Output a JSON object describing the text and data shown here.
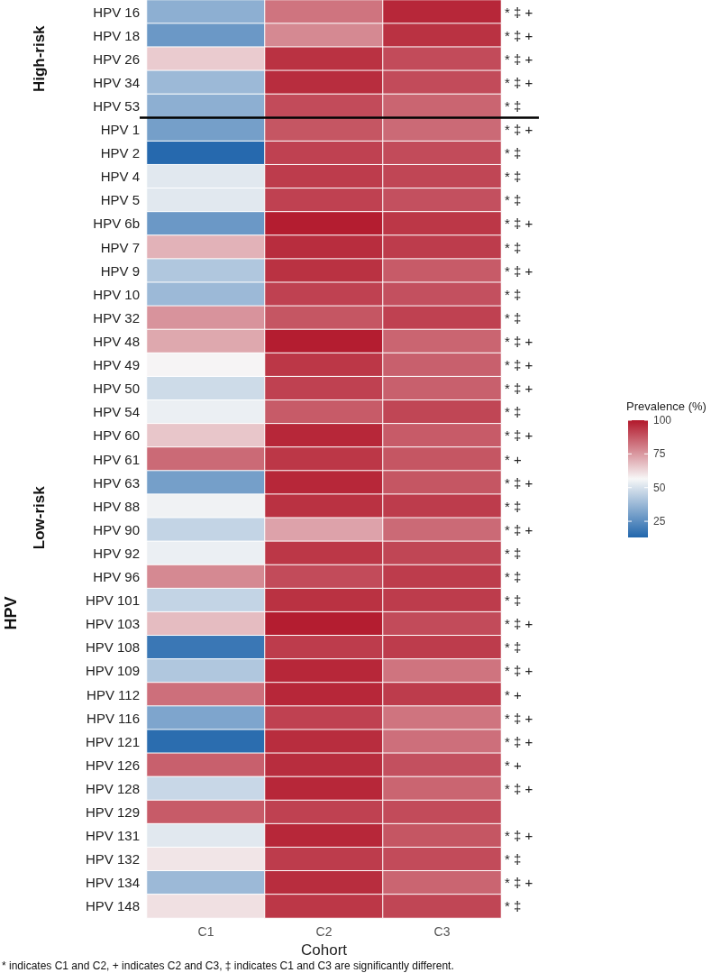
{
  "chart_data": {
    "type": "heatmap",
    "xlabel": "Cohort",
    "ylabel": "HPV",
    "clabel": "Prevalence (%)",
    "categories": [
      "C1",
      "C2",
      "C3"
    ],
    "y_categories": [
      "HPV 16",
      "HPV 18",
      "HPV 26",
      "HPV 34",
      "HPV 53",
      "HPV 1",
      "HPV 2",
      "HPV 4",
      "HPV 5",
      "HPV 6b",
      "HPV 7",
      "HPV 9",
      "HPV 10",
      "HPV 32",
      "HPV 48",
      "HPV 49",
      "HPV 50",
      "HPV 54",
      "HPV 60",
      "HPV 61",
      "HPV 63",
      "HPV 88",
      "HPV 90",
      "HPV 92",
      "HPV 96",
      "HPV 101",
      "HPV 103",
      "HPV 108",
      "HPV 109",
      "HPV 112",
      "HPV 116",
      "HPV 121",
      "HPV 126",
      "HPV 128",
      "HPV 129",
      "HPV 131",
      "HPV 132",
      "HPV 134",
      "HPV 148"
    ],
    "y2_categories": [
      "* ‡ +",
      "* ‡ +",
      "* ‡ +",
      "* ‡ +",
      "* ‡",
      "* ‡ +",
      "* ‡",
      "* ‡",
      "* ‡",
      "* ‡ +",
      "* ‡",
      "* ‡ +",
      "* ‡",
      "* ‡",
      "* ‡ +",
      "* ‡ +",
      "* ‡ +",
      "* ‡",
      "* ‡ +",
      "* +",
      "* ‡ +",
      "* ‡",
      "* ‡ +",
      "* ‡",
      "* ‡",
      "* ‡",
      "* ‡ +",
      "* ‡",
      "* ‡ +",
      "* +",
      "* ‡ +",
      "* ‡ +",
      "* +",
      "* ‡ +",
      null,
      "* ‡ +",
      "* ‡",
      "* ‡ +",
      "* ‡"
    ],
    "cells": [
      [
        35,
        82,
        97
      ],
      [
        28,
        78,
        95
      ],
      [
        65,
        95,
        90
      ],
      [
        38,
        96,
        90
      ],
      [
        35,
        90,
        85
      ],
      [
        30,
        88,
        84
      ],
      [
        14,
        92,
        90
      ],
      [
        52,
        93,
        91
      ],
      [
        52,
        92,
        89
      ],
      [
        28,
        99,
        94
      ],
      [
        70,
        96,
        93
      ],
      [
        42,
        95,
        87
      ],
      [
        38,
        92,
        89
      ],
      [
        76,
        88,
        92
      ],
      [
        72,
        99,
        85
      ],
      [
        57,
        94,
        86
      ],
      [
        48,
        92,
        86
      ],
      [
        54,
        87,
        91
      ],
      [
        66,
        97,
        87
      ],
      [
        84,
        94,
        88
      ],
      [
        30,
        97,
        88
      ],
      [
        55,
        95,
        93
      ],
      [
        46,
        73,
        84
      ],
      [
        54,
        94,
        91
      ],
      [
        78,
        90,
        93
      ],
      [
        46,
        95,
        93
      ],
      [
        68,
        99,
        90
      ],
      [
        18,
        93,
        93
      ],
      [
        42,
        97,
        82
      ],
      [
        83,
        97,
        93
      ],
      [
        32,
        92,
        82
      ],
      [
        15,
        96,
        83
      ],
      [
        86,
        96,
        89
      ],
      [
        47,
        97,
        85
      ],
      [
        87,
        92,
        90
      ],
      [
        52,
        97,
        88
      ],
      [
        60,
        93,
        90
      ],
      [
        38,
        96,
        85
      ],
      [
        61,
        94,
        91
      ]
    ],
    "clim": [
      13,
      100
    ],
    "cticks": [
      25,
      50,
      75,
      100
    ],
    "ref_lines": [
      {
        "axis": "y",
        "value": "HPV 53"
      }
    ],
    "annotations": [
      "High-risk",
      "Low-risk",
      "* indicates C1 and C2, + indicates C2 and C3, ‡ indicates C1 and C3 are significantly different."
    ]
  }
}
